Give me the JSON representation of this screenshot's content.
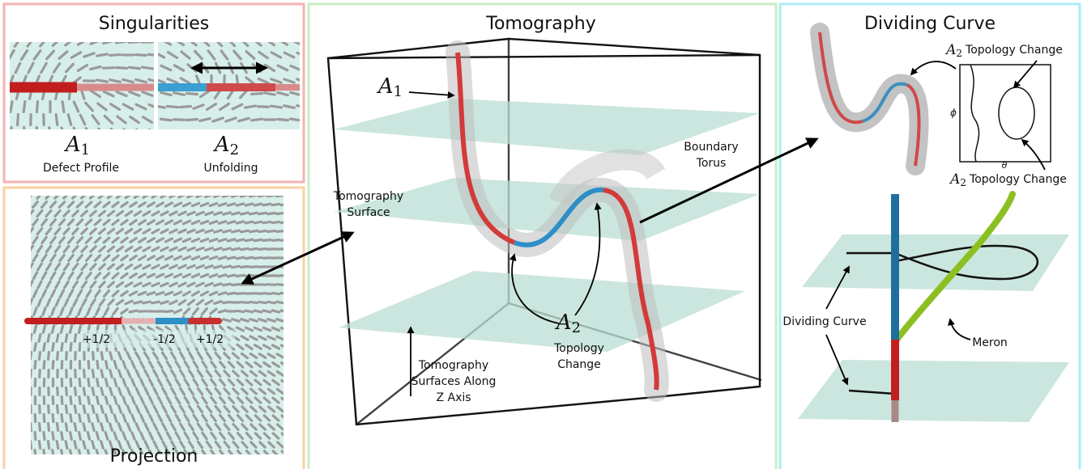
{
  "panels": {
    "singularities": {
      "title": "Singularities",
      "a1": {
        "symbol": "A",
        "sub": "1",
        "caption": "Defect Profile"
      },
      "a2": {
        "symbol": "A",
        "sub": "2",
        "caption": "Unfolding"
      }
    },
    "projection": {
      "title": "Projection",
      "charges": [
        "+1/2",
        "-1/2",
        "+1/2"
      ]
    },
    "tomography": {
      "title": "Tomography",
      "a1": {
        "symbol": "A",
        "sub": "1"
      },
      "surface_label": [
        "Tomography",
        "Surface"
      ],
      "torus_label": [
        "Boundary",
        "Torus"
      ],
      "a2": {
        "symbol": "A",
        "sub": "2",
        "caption": [
          "Topology",
          "Change"
        ]
      },
      "z_axis_label": [
        "Tomography",
        "Surfaces Along",
        "Z Axis"
      ]
    },
    "dividing_curve": {
      "title": "Dividing Curve",
      "top_annotation": {
        "symbol": "A",
        "sub": "2",
        "text": "Topology Change"
      },
      "bottom_annotation": {
        "symbol": "A",
        "sub": "2",
        "text": "Topology Change"
      },
      "phi": "ϕ",
      "theta": "θ",
      "curve_label": "Dividing Curve",
      "meron_label": "Meron"
    }
  }
}
